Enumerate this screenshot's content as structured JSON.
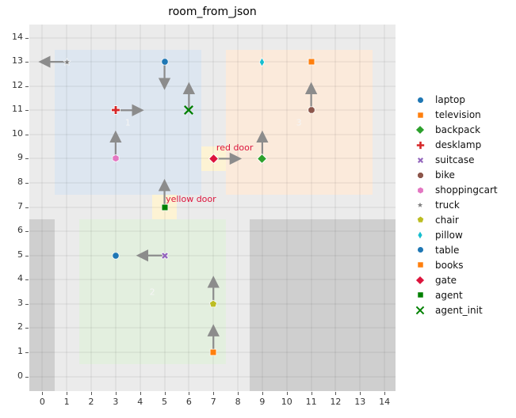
{
  "chart_data": {
    "type": "scatter",
    "title": "room_from_json",
    "xlabel": "",
    "ylabel": "",
    "xlim": [
      -0.53,
      14.45
    ],
    "ylim": [
      -0.6,
      14.54
    ],
    "xticks": [
      0,
      1,
      2,
      3,
      4,
      5,
      6,
      7,
      8,
      9,
      10,
      11,
      12,
      13,
      14
    ],
    "yticks": [
      0,
      1,
      2,
      3,
      4,
      5,
      6,
      7,
      8,
      9,
      10,
      11,
      12,
      13,
      14
    ],
    "grid": true,
    "legend_position": "right-outside",
    "colors": {
      "plot_bg": "#ebebeb",
      "grid": "rgba(0,0,0,0.045)",
      "arrow": "#8c8c8c",
      "door_label_text": "#dc143c",
      "room_label_text": "#f5f5f5"
    },
    "regions": [
      {
        "name": "room-1",
        "x0": 0.5,
        "y0": 7.5,
        "x1": 6.5,
        "y1": 13.5,
        "color": "#dde6f0"
      },
      {
        "name": "room-2",
        "x0": 1.5,
        "y0": 0.5,
        "x1": 7.5,
        "y1": 6.5,
        "color": "#e3efdf"
      },
      {
        "name": "room-3",
        "x0": 7.5,
        "y0": 7.5,
        "x1": 13.5,
        "y1": 13.5,
        "color": "#fbeadb"
      },
      {
        "name": "wall-left",
        "x0": -0.53,
        "y0": -0.6,
        "x1": 0.5,
        "y1": 6.5,
        "color": "#cfcfcf"
      },
      {
        "name": "wall-right",
        "x0": 8.5,
        "y0": -0.6,
        "x1": 14.45,
        "y1": 6.5,
        "color": "#cfcfcf"
      },
      {
        "name": "red-door-cell",
        "x0": 6.5,
        "y0": 8.5,
        "x1": 7.5,
        "y1": 9.5,
        "color": "#fdf3d4"
      },
      {
        "name": "yellow-door-cell",
        "x0": 4.5,
        "y0": 6.5,
        "x1": 5.5,
        "y1": 7.5,
        "color": "#fdf3d4"
      }
    ],
    "room_labels": [
      {
        "text": "1",
        "x": 3.5,
        "y": 10.5
      },
      {
        "text": "2",
        "x": 4.5,
        "y": 3.5
      },
      {
        "text": "3",
        "x": 10.5,
        "y": 10.5
      }
    ],
    "door_labels": [
      {
        "text": "red door",
        "x": 7.12,
        "y": 9.45
      },
      {
        "text": "yellow door",
        "x": 5.05,
        "y": 7.3
      }
    ],
    "points": [
      {
        "name": "laptop",
        "marker": "circle",
        "color": "#1f77b4",
        "x": 5,
        "y": 13,
        "arrow": [
          0,
          -1
        ]
      },
      {
        "name": "television",
        "marker": "square",
        "color": "#ff7f0e",
        "x": 7,
        "y": 1,
        "arrow": [
          0,
          1
        ]
      },
      {
        "name": "backpack",
        "marker": "diamond",
        "color": "#2ca02c",
        "x": 9,
        "y": 9,
        "arrow": [
          0,
          1
        ]
      },
      {
        "name": "desklamp",
        "marker": "plus",
        "color": "#d62728",
        "x": 3,
        "y": 11,
        "arrow": [
          1,
          0
        ]
      },
      {
        "name": "suitcase",
        "marker": "x-bold",
        "color": "#9467bd",
        "x": 5,
        "y": 5,
        "arrow": [
          -1,
          0
        ]
      },
      {
        "name": "bike",
        "marker": "octagon",
        "color": "#8c564b",
        "x": 11,
        "y": 11,
        "arrow": [
          0,
          1
        ]
      },
      {
        "name": "shoppingcart",
        "marker": "hexagon",
        "color": "#e377c2",
        "x": 3,
        "y": 9,
        "arrow": [
          0,
          1
        ]
      },
      {
        "name": "truck",
        "marker": "star",
        "color": "#7f7f7f",
        "x": 1,
        "y": 13,
        "arrow": [
          -1,
          0
        ]
      },
      {
        "name": "chair",
        "marker": "pentagon",
        "color": "#bcbd22",
        "x": 7,
        "y": 3,
        "arrow": [
          0,
          1
        ]
      },
      {
        "name": "pillow",
        "marker": "thin-diamond",
        "color": "#17becf",
        "x": 9,
        "y": 13,
        "arrow": null
      },
      {
        "name": "table",
        "marker": "circle",
        "color": "#1f77b4",
        "x": 3,
        "y": 5,
        "arrow": null
      },
      {
        "name": "books",
        "marker": "square",
        "color": "#ff7f0e",
        "x": 11,
        "y": 13,
        "arrow": null
      },
      {
        "name": "gate",
        "marker": "diamond",
        "color": "#dc143c",
        "x": 7,
        "y": 9,
        "arrow": [
          1,
          0
        ]
      },
      {
        "name": "agent",
        "marker": "square",
        "color": "#008000",
        "x": 5,
        "y": 7,
        "arrow": [
          0,
          1
        ]
      },
      {
        "name": "agent_init",
        "marker": "x-thin",
        "color": "#008000",
        "x": 6,
        "y": 11,
        "arrow": [
          0,
          1
        ]
      }
    ],
    "legend": [
      "laptop",
      "television",
      "backpack",
      "desklamp",
      "suitcase",
      "bike",
      "shoppingcart",
      "truck",
      "chair",
      "pillow",
      "table",
      "books",
      "gate",
      "agent",
      "agent_init"
    ],
    "arrow_length": 0.82
  }
}
